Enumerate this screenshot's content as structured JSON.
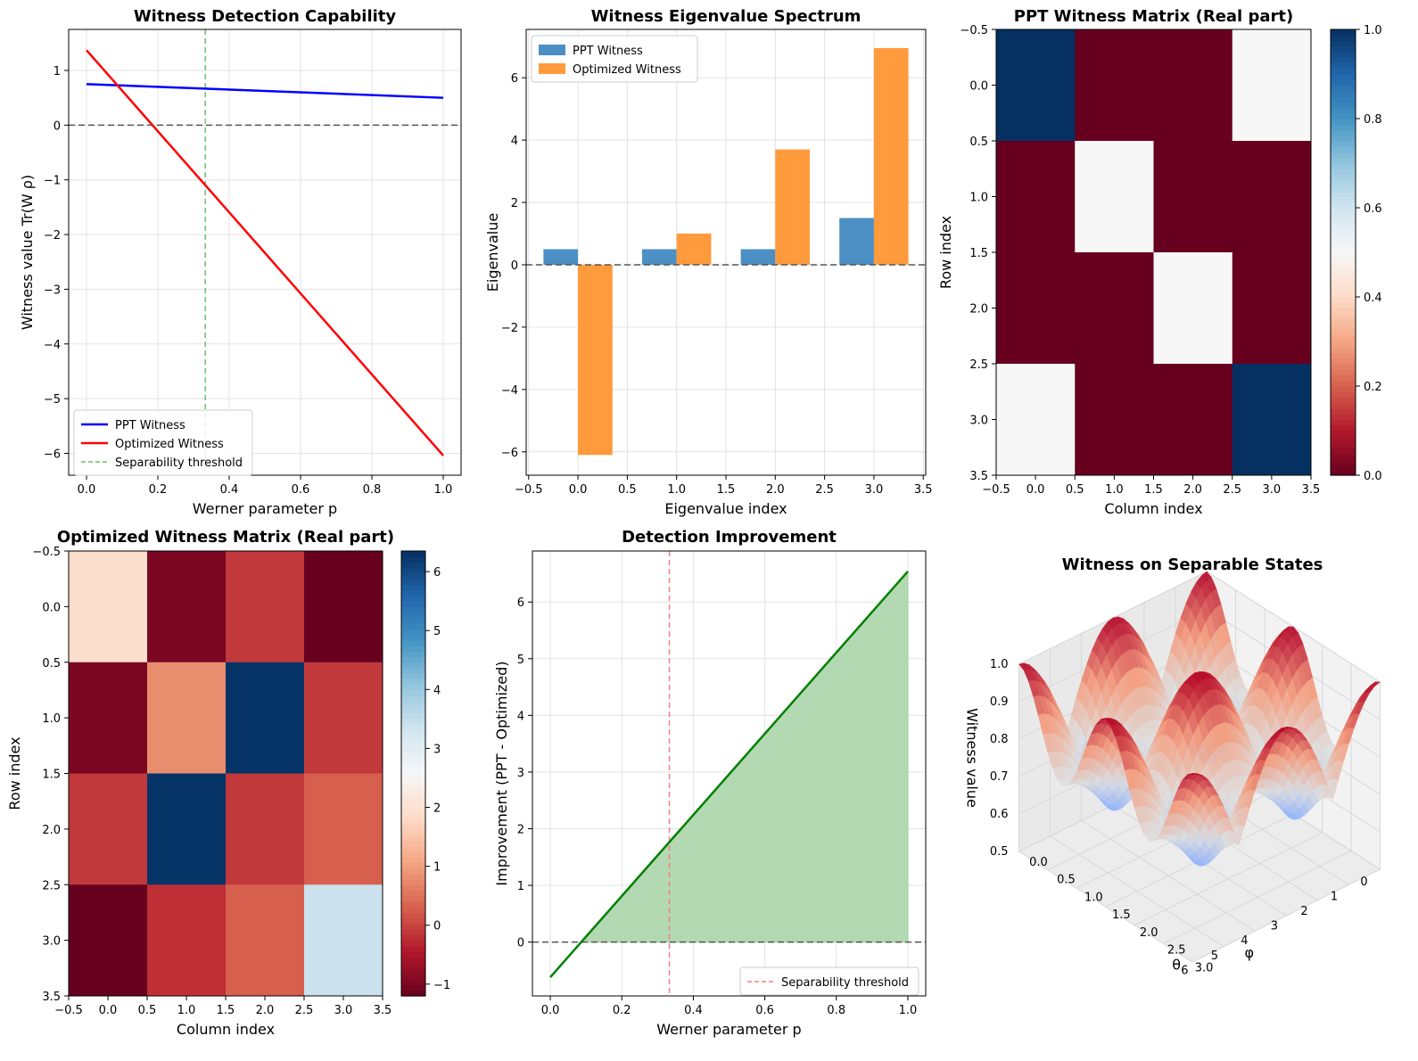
{
  "chart_data": [
    {
      "type": "line",
      "title": "Witness Detection Capability",
      "xlabel": "Werner parameter p",
      "ylabel": "Witness value Tr(W ρ)",
      "xlim": [
        -0.05,
        1.05
      ],
      "ylim": [
        -6.4,
        1.75
      ],
      "xticks": [
        0,
        0.2,
        0.4,
        0.6,
        0.8,
        1
      ],
      "xtick_labels": [
        "0.0",
        "0.2",
        "0.4",
        "0.6",
        "0.8",
        "1.0"
      ],
      "yticks": [
        -6,
        -5,
        -4,
        -3,
        -2,
        -1,
        0,
        1
      ],
      "ytick_labels": [
        "−6",
        "−5",
        "−4",
        "−3",
        "−2",
        "−1",
        "0",
        "1"
      ],
      "grid": true,
      "series": [
        {
          "name": "PPT Witness",
          "color": "#0000ff",
          "x": [
            0,
            1
          ],
          "y": [
            0.75,
            0.5
          ]
        },
        {
          "name": "Optimized Witness",
          "color": "#ff0000",
          "x": [
            0,
            1
          ],
          "y": [
            1.37,
            -6.04
          ]
        }
      ],
      "vline": {
        "name": "Separability threshold",
        "x": 0.333,
        "color": "#6abf69"
      },
      "hline": {
        "y": 0
      },
      "legend": {
        "position": "lower-left",
        "entries": [
          "PPT Witness",
          "Optimized Witness",
          "Separability threshold"
        ]
      }
    },
    {
      "type": "bar",
      "title": "Witness Eigenvalue Spectrum",
      "xlabel": "Eigenvalue index",
      "ylabel": "Eigenvalue",
      "xlim": [
        -0.525,
        3.525
      ],
      "ylim": [
        -6.75,
        7.55
      ],
      "xticks": [
        -0.5,
        0,
        0.5,
        1,
        1.5,
        2,
        2.5,
        3,
        3.5
      ],
      "xtick_labels": [
        "−0.5",
        "0.0",
        "0.5",
        "1.0",
        "1.5",
        "2.0",
        "2.5",
        "3.0",
        "3.5"
      ],
      "yticks": [
        -6,
        -4,
        -2,
        0,
        2,
        4,
        6
      ],
      "ytick_labels": [
        "−6",
        "−4",
        "−2",
        "0",
        "2",
        "4",
        "6"
      ],
      "grid": true,
      "categories": [
        0,
        1,
        2,
        3
      ],
      "series": [
        {
          "name": "PPT Witness",
          "color": "#4c8fc4",
          "values": [
            0.5,
            0.5,
            0.5,
            1.5
          ]
        },
        {
          "name": "Optimized Witness",
          "color": "#ff9a3d",
          "values": [
            -6.1,
            1.0,
            3.7,
            6.95
          ]
        }
      ],
      "hline": {
        "y": 0
      },
      "legend": {
        "position": "upper-left",
        "entries": [
          "PPT Witness",
          "Optimized Witness"
        ]
      }
    },
    {
      "type": "heatmap",
      "title": "PPT Witness Matrix (Real part)",
      "xlabel": "Column index",
      "ylabel": "Row index",
      "matrix": [
        [
          1.0,
          0.0,
          0.0,
          0.5
        ],
        [
          0.0,
          0.5,
          0.0,
          0.0
        ],
        [
          0.0,
          0.0,
          0.5,
          0.0
        ],
        [
          0.5,
          0.0,
          0.0,
          1.0
        ]
      ],
      "vmin": 0.0,
      "vmax": 1.0,
      "colormap": "RdBu",
      "ticks": [
        -0.5,
        0,
        0.5,
        1,
        1.5,
        2,
        2.5,
        3,
        3.5
      ],
      "tick_labels": [
        "−0.5",
        "0.0",
        "0.5",
        "1.0",
        "1.5",
        "2.0",
        "2.5",
        "3.0",
        "3.5"
      ],
      "colorbar_ticks": [
        0,
        0.2,
        0.4,
        0.6,
        0.8,
        1
      ],
      "colorbar_labels": [
        "0.0",
        "0.2",
        "0.4",
        "0.6",
        "0.8",
        "1.0"
      ]
    },
    {
      "type": "heatmap",
      "title": "Optimized Witness Matrix (Real part)",
      "xlabel": "Column index",
      "ylabel": "Row index",
      "matrix": [
        [
          1.9,
          -1.0,
          -0.1,
          -1.2
        ],
        [
          -1.0,
          0.8,
          6.3,
          -0.1
        ],
        [
          -0.1,
          6.3,
          -0.1,
          0.3
        ],
        [
          -1.2,
          -0.2,
          0.3,
          3.4
        ]
      ],
      "vmin": -1.2,
      "vmax": 6.35,
      "colormap": "RdBu",
      "ticks": [
        -0.5,
        0,
        0.5,
        1,
        1.5,
        2,
        2.5,
        3,
        3.5
      ],
      "tick_labels": [
        "−0.5",
        "0.0",
        "0.5",
        "1.0",
        "1.5",
        "2.0",
        "2.5",
        "3.0",
        "3.5"
      ],
      "colorbar_ticks": [
        -1,
        0,
        1,
        2,
        3,
        4,
        5,
        6
      ],
      "colorbar_labels": [
        "−1",
        "0",
        "1",
        "2",
        "3",
        "4",
        "5",
        "6"
      ]
    },
    {
      "type": "area",
      "title": "Detection Improvement",
      "xlabel": "Werner parameter p",
      "ylabel": "Improvement (PPT - Optimized)",
      "xlim": [
        -0.05,
        1.05
      ],
      "ylim": [
        -0.95,
        6.9
      ],
      "xticks": [
        0,
        0.2,
        0.4,
        0.6,
        0.8,
        1
      ],
      "xtick_labels": [
        "0.0",
        "0.2",
        "0.4",
        "0.6",
        "0.8",
        "1.0"
      ],
      "yticks": [
        0,
        1,
        2,
        3,
        4,
        5,
        6
      ],
      "ytick_labels": [
        "0",
        "1",
        "2",
        "3",
        "4",
        "5",
        "6"
      ],
      "grid": true,
      "series": [
        {
          "name": "Improvement",
          "color": "#008000",
          "fill": "#b3d9b3",
          "x": [
            0,
            1
          ],
          "y": [
            -0.62,
            6.54
          ]
        }
      ],
      "fill_where": "y > 0",
      "vline": {
        "name": "Separability threshold",
        "x": 0.333,
        "color": "#f08080"
      },
      "hline": {
        "y": 0
      },
      "legend": {
        "position": "lower-right",
        "entries": [
          "Separability threshold"
        ]
      }
    },
    {
      "type": "surface3d",
      "title": "Witness on Separable States",
      "xlabel": "θ",
      "ylabel": "φ",
      "zlabel": "Witness value",
      "theta_range": [
        0,
        3.14159
      ],
      "phi_range": [
        0,
        6.28318
      ],
      "z_range": [
        0.5,
        1.0
      ],
      "function": "0.75 + 0.25*cos(2θ)^2 weighted by cos(φ)^2 pattern",
      "theta_ticks": [
        "0.0",
        "0.5",
        "1.0",
        "1.5",
        "2.0",
        "2.5",
        "3.0"
      ],
      "phi_ticks": [
        "0",
        "1",
        "2",
        "3",
        "4",
        "5",
        "6"
      ],
      "z_ticks": [
        "0.5",
        "0.6",
        "0.7",
        "0.8",
        "0.9",
        "1.0"
      ],
      "colormap": "coolwarm"
    }
  ]
}
